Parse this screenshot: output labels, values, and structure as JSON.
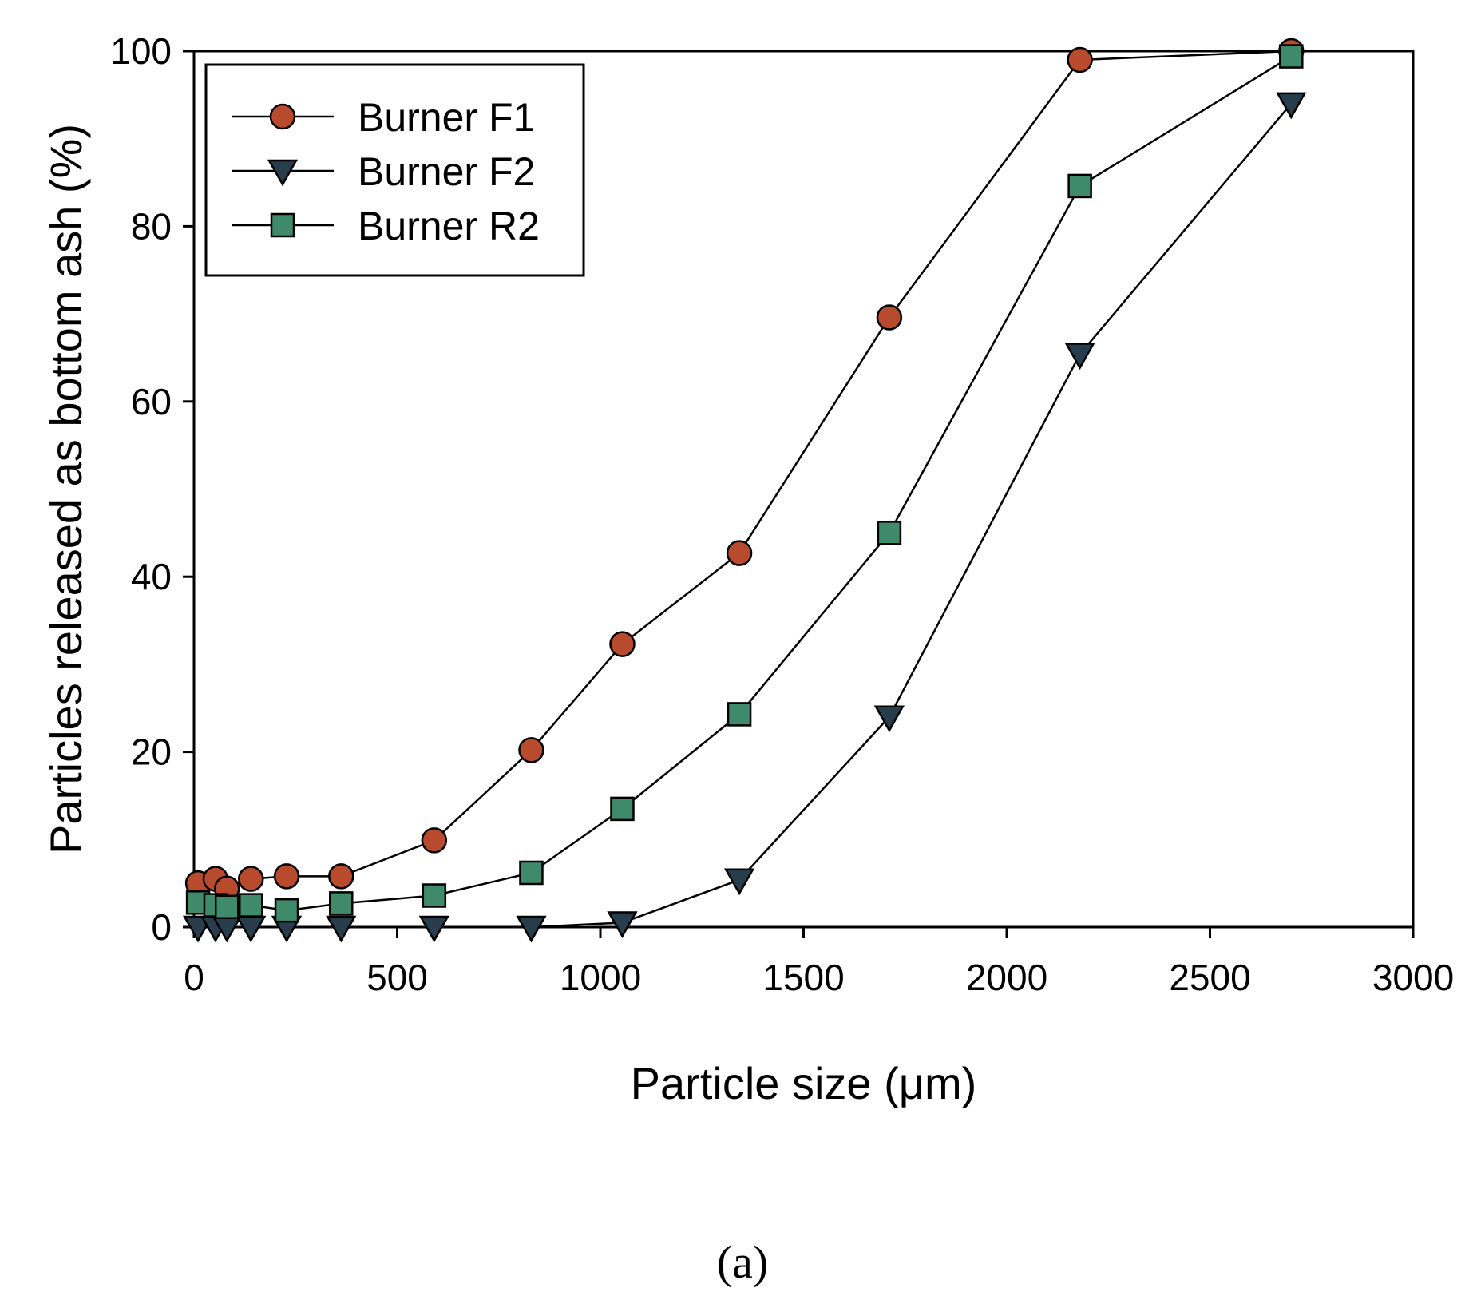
{
  "chart_data": {
    "type": "line",
    "xlabel": "Particle size (μm)",
    "ylabel": "Particles released as bottom ash (%)",
    "xlim": [
      0,
      3000
    ],
    "ylim": [
      0,
      100
    ],
    "xticks": [
      0,
      500,
      1000,
      1500,
      2000,
      2500,
      3000
    ],
    "yticks": [
      0,
      20,
      40,
      60,
      80,
      100
    ],
    "grid": false,
    "legend_position": "top-left",
    "panel_label": "(a)",
    "series": [
      {
        "name": "Burner F1",
        "marker": "circle",
        "color": "#b84a2e",
        "x": [
          10,
          53,
          81,
          140,
          228,
          362,
          591,
          830,
          1054,
          1342,
          1711,
          2180,
          2700
        ],
        "y": [
          5.0,
          5.5,
          4.4,
          5.5,
          5.8,
          5.8,
          9.9,
          20.2,
          32.3,
          42.7,
          69.6,
          99.0,
          100.0
        ]
      },
      {
        "name": "Burner F2",
        "marker": "triangle-down",
        "color": "#283d4c",
        "x": [
          10,
          53,
          81,
          140,
          228,
          362,
          591,
          830,
          1054,
          1342,
          1711,
          2180,
          2700
        ],
        "y": [
          0.0,
          0.0,
          0.0,
          0.0,
          0.0,
          0.0,
          0.0,
          0.0,
          0.5,
          5.4,
          24.0,
          65.4,
          94.0
        ]
      },
      {
        "name": "Burner R2",
        "marker": "square",
        "color": "#3e8a6a",
        "x": [
          10,
          53,
          81,
          140,
          228,
          362,
          591,
          830,
          1054,
          1342,
          1711,
          2180,
          2700
        ],
        "y": [
          2.8,
          2.5,
          2.3,
          2.5,
          1.9,
          2.7,
          3.6,
          6.2,
          13.5,
          24.3,
          45.0,
          84.6,
          99.4
        ]
      }
    ]
  }
}
